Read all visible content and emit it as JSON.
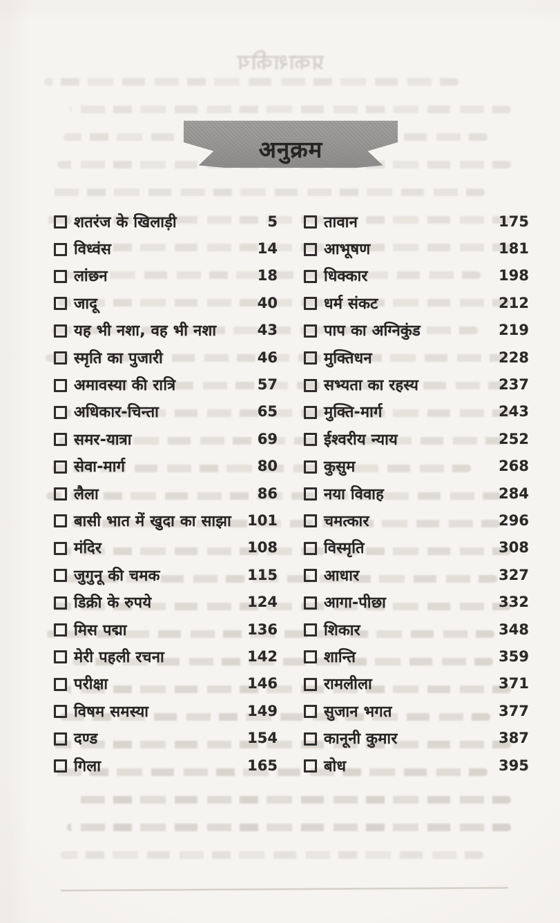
{
  "banner": {
    "title": "अनुक्रम"
  },
  "ghost": {
    "heading": "प्रकाशकीय"
  },
  "colors": {
    "paper": "#f6f4f0",
    "ink": "#262524",
    "ribbon": "#999795"
  },
  "contents": {
    "left": [
      {
        "title": "शतरंज के खिलाड़ी",
        "page": "5"
      },
      {
        "title": "विध्वंस",
        "page": "14"
      },
      {
        "title": "लांछन",
        "page": "18"
      },
      {
        "title": "जादू",
        "page": "40"
      },
      {
        "title": "यह भी नशा, वह भी नशा",
        "page": "43"
      },
      {
        "title": "स्मृति का पुजारी",
        "page": "46"
      },
      {
        "title": "अमावस्या की रात्रि",
        "page": "57"
      },
      {
        "title": "अधिकार-चिन्ता",
        "page": "65"
      },
      {
        "title": "समर-यात्रा",
        "page": "69"
      },
      {
        "title": "सेवा-मार्ग",
        "page": "80"
      },
      {
        "title": "लैला",
        "page": "86"
      },
      {
        "title": "बासी भात में खुदा का साझा",
        "page": "101"
      },
      {
        "title": "मंदिर",
        "page": "108"
      },
      {
        "title": "जुगुनू की चमक",
        "page": "115"
      },
      {
        "title": "डिक्री के रुपये",
        "page": "124"
      },
      {
        "title": "मिस पद्मा",
        "page": "136"
      },
      {
        "title": "मेरी पहली रचना",
        "page": "142"
      },
      {
        "title": "परीक्षा",
        "page": "146"
      },
      {
        "title": "विषम समस्या",
        "page": "149"
      },
      {
        "title": "दण्ड",
        "page": "154"
      },
      {
        "title": "गिला",
        "page": "165"
      }
    ],
    "right": [
      {
        "title": "तावान",
        "page": "175"
      },
      {
        "title": "आभूषण",
        "page": "181"
      },
      {
        "title": "धिक्कार",
        "page": "198"
      },
      {
        "title": "धर्म संकट",
        "page": "212"
      },
      {
        "title": "पाप का अग्निकुंड",
        "page": "219"
      },
      {
        "title": "मुक्तिधन",
        "page": "228"
      },
      {
        "title": "सभ्यता का रहस्य",
        "page": "237"
      },
      {
        "title": "मुक्ति-मार्ग",
        "page": "243"
      },
      {
        "title": "ईश्वरीय न्याय",
        "page": "252"
      },
      {
        "title": "कुसुम",
        "page": "268"
      },
      {
        "title": "नया विवाह",
        "page": "284"
      },
      {
        "title": "चमत्कार",
        "page": "296"
      },
      {
        "title": "विस्मृति",
        "page": "308"
      },
      {
        "title": "आधार",
        "page": "327"
      },
      {
        "title": "आगा-पीछा",
        "page": "332"
      },
      {
        "title": "शिकार",
        "page": "348"
      },
      {
        "title": "शान्ति",
        "page": "359"
      },
      {
        "title": "रामलीला",
        "page": "371"
      },
      {
        "title": "सुजान भगत",
        "page": "377"
      },
      {
        "title": "कानूनी कुमार",
        "page": "387"
      },
      {
        "title": "बोध",
        "page": "395"
      }
    ]
  }
}
